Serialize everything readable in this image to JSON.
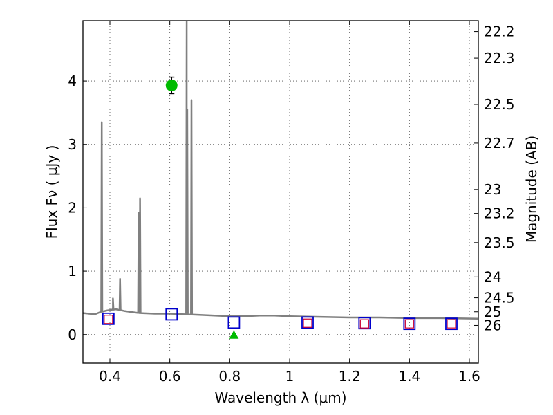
{
  "chart_data": {
    "type": "scatter",
    "title": "",
    "xlabel": "Wavelength  λ (μm)",
    "ylabel": "Flux  Fν  ( μJy )",
    "ylabel_right": "Magnitude (AB)",
    "xlim": [
      0.31,
      1.63
    ],
    "ylim": [
      -0.45,
      4.95
    ],
    "grid": true,
    "x_ticks": [
      0.4,
      0.6,
      0.8,
      1.0,
      1.2,
      1.4,
      1.6
    ],
    "x_tick_labels": [
      "0.4",
      "0.6",
      "0.8",
      "1",
      "1.2",
      "1.4",
      "1.6"
    ],
    "y_ticks": [
      0,
      1,
      2,
      3,
      4
    ],
    "y_tick_labels": [
      "0",
      "1",
      "2",
      "3",
      "4"
    ],
    "right_ticks": [
      {
        "label": "22.2",
        "flux": 4.78
      },
      {
        "label": "22.3",
        "flux": 4.36
      },
      {
        "label": "22.5",
        "flux": 3.63
      },
      {
        "label": "22.7",
        "flux": 3.02
      },
      {
        "label": "23",
        "flux": 2.29
      },
      {
        "label": "23.2",
        "flux": 1.91
      },
      {
        "label": "23.5",
        "flux": 1.45
      },
      {
        "label": "24",
        "flux": 0.91
      },
      {
        "label": "24.5",
        "flux": 0.58
      },
      {
        "label": "25",
        "flux": 0.36
      },
      {
        "label": "26",
        "flux": 0.145
      }
    ],
    "series": [
      {
        "name": "SED model",
        "kind": "line",
        "color": "#808080",
        "continuum": [
          [
            0.31,
            0.34
          ],
          [
            0.33,
            0.33
          ],
          [
            0.35,
            0.32
          ],
          [
            0.37,
            0.36
          ],
          [
            0.39,
            0.38
          ],
          [
            0.42,
            0.4
          ],
          [
            0.45,
            0.37
          ],
          [
            0.5,
            0.34
          ],
          [
            0.55,
            0.33
          ],
          [
            0.6,
            0.33
          ],
          [
            0.65,
            0.32
          ],
          [
            0.7,
            0.31
          ],
          [
            0.75,
            0.3
          ],
          [
            0.8,
            0.29
          ],
          [
            0.85,
            0.29
          ],
          [
            0.9,
            0.3
          ],
          [
            0.95,
            0.3
          ],
          [
            1.0,
            0.29
          ],
          [
            1.1,
            0.28
          ],
          [
            1.2,
            0.27
          ],
          [
            1.3,
            0.27
          ],
          [
            1.4,
            0.26
          ],
          [
            1.5,
            0.26
          ],
          [
            1.63,
            0.25
          ]
        ],
        "emission_lines": [
          {
            "x": 0.3727,
            "peak": 3.35
          },
          {
            "x": 0.4101,
            "peak": 0.42
          },
          {
            "x": 0.4102,
            "peak": 0.57
          },
          {
            "x": 0.434,
            "peak": 0.88
          },
          {
            "x": 0.4959,
            "peak": 1.92
          },
          {
            "x": 0.5007,
            "peak": 2.15
          },
          {
            "x": 0.6563,
            "peak": 4.95
          },
          {
            "x": 0.6583,
            "peak": 3.55
          },
          {
            "x": 0.6724,
            "peak": 3.7
          }
        ]
      },
      {
        "name": "Observed detection",
        "kind": "circle",
        "color": "#00bb00",
        "points": [
          {
            "x": 0.606,
            "y": 3.93,
            "yerr": 0.13
          }
        ]
      },
      {
        "name": "Upper limit",
        "kind": "triangle",
        "color": "#00bb00",
        "points": [
          {
            "x": 0.814,
            "y": 0.0
          }
        ]
      },
      {
        "name": "Model photometry",
        "kind": "square",
        "color": "#0000cc",
        "points": [
          {
            "x": 0.395,
            "y": 0.25
          },
          {
            "x": 0.606,
            "y": 0.32
          },
          {
            "x": 0.814,
            "y": 0.19
          },
          {
            "x": 1.06,
            "y": 0.19
          },
          {
            "x": 1.25,
            "y": 0.18
          },
          {
            "x": 1.4,
            "y": 0.17
          },
          {
            "x": 1.54,
            "y": 0.17
          }
        ]
      },
      {
        "name": "Synthetic photometry",
        "kind": "small-square",
        "color": "#cc0033",
        "points": [
          {
            "x": 0.395,
            "y": 0.24
          },
          {
            "x": 1.06,
            "y": 0.18
          },
          {
            "x": 1.25,
            "y": 0.17
          },
          {
            "x": 1.4,
            "y": 0.17
          },
          {
            "x": 1.54,
            "y": 0.17
          }
        ]
      }
    ]
  }
}
